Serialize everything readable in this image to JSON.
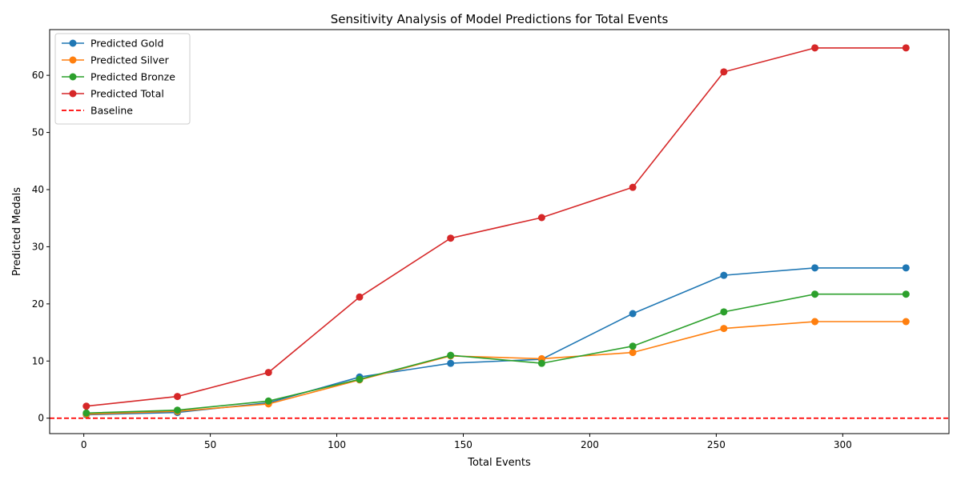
{
  "chart_data": {
    "type": "line",
    "title": "Sensitivity Analysis of Model Predictions for Total Events",
    "xlabel": "Total Events",
    "ylabel": "Predicted Medals",
    "x": [
      1,
      37,
      73,
      109,
      145,
      181,
      217,
      253,
      289,
      325
    ],
    "xlim": [
      -13.5,
      342
    ],
    "ylim": [
      -2.7,
      68
    ],
    "xticks": [
      0,
      50,
      100,
      150,
      200,
      250,
      300
    ],
    "yticks": [
      0,
      10,
      20,
      30,
      40,
      50,
      60
    ],
    "grid": false,
    "legend_position": "top-left",
    "series": [
      {
        "name": "Predicted Gold",
        "color": "#1f77b4",
        "values": [
          0.6,
          1.0,
          2.7,
          7.2,
          9.6,
          10.3,
          18.3,
          25.0,
          26.3,
          26.3
        ]
      },
      {
        "name": "Predicted Silver",
        "color": "#ff7f0e",
        "values": [
          0.7,
          1.2,
          2.5,
          6.7,
          10.9,
          10.4,
          11.5,
          15.7,
          16.9,
          16.9
        ]
      },
      {
        "name": "Predicted Bronze",
        "color": "#2ca02c",
        "values": [
          0.9,
          1.4,
          3.0,
          6.8,
          11.0,
          9.6,
          12.6,
          18.6,
          21.7,
          21.7
        ]
      },
      {
        "name": "Predicted Total",
        "color": "#d62728",
        "values": [
          2.1,
          3.8,
          8.0,
          21.2,
          31.5,
          35.1,
          40.4,
          60.6,
          64.8,
          64.8
        ]
      }
    ],
    "reference_lines": [
      {
        "name": "Baseline",
        "y": 0,
        "color": "#ff0000",
        "style": "dashed"
      }
    ]
  }
}
